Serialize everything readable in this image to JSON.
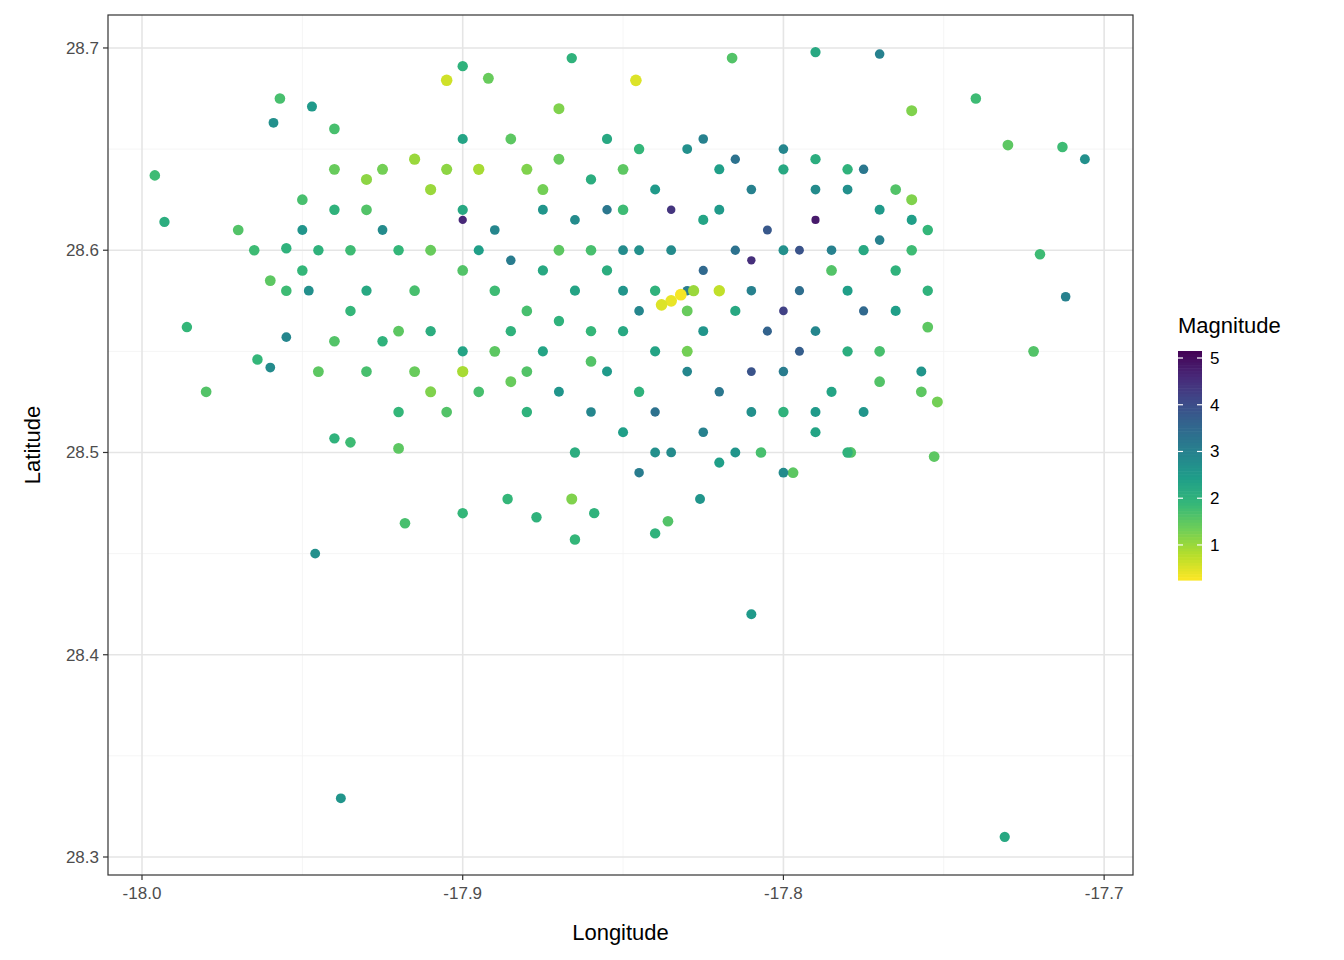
{
  "chart_data": {
    "type": "scatter",
    "x_label": "Longitude",
    "y_label": "Latitude",
    "xlim": [
      -18.0106,
      -17.691
    ],
    "ylim": [
      28.2911,
      28.7163
    ],
    "xticks": [
      {
        "value": -18,
        "label": "-18.0"
      },
      -17.9,
      -17.8,
      -17.7
    ],
    "yticks": [
      28.3,
      28.4,
      28.5,
      28.6,
      28.7
    ],
    "grid": true,
    "colorbar": {
      "title": "Magnitude",
      "range": [
        0.25,
        5.15
      ],
      "ticks": [
        1,
        2,
        3,
        4,
        5
      ]
    },
    "x": [
      -17.946,
      -17.938,
      -17.81,
      -17.731,
      -17.996,
      -17.993,
      -17.986,
      -17.706,
      -17.712,
      -17.713,
      -17.722,
      -17.72,
      -17.77,
      -17.79,
      -17.816,
      -17.846,
      -17.892,
      -17.905,
      -17.9,
      -17.866,
      -17.76,
      -17.74,
      -17.73,
      -17.753,
      -17.752,
      -17.757,
      -17.757,
      -17.755,
      -17.779,
      -17.78,
      -17.797,
      -17.807,
      -17.826,
      -17.84,
      -17.836,
      -17.865,
      -17.866,
      -17.859,
      -17.877,
      -17.918,
      -17.9,
      -17.886,
      -17.92,
      -17.935,
      -17.94,
      -17.98,
      -17.964,
      -17.96,
      -17.955,
      -17.955,
      -17.965,
      -17.97,
      -17.957,
      -17.959,
      -17.947,
      -17.94,
      -17.948,
      -17.945,
      -17.93,
      -17.92,
      -17.915,
      -17.91,
      -17.905,
      -17.9,
      -17.895,
      -17.89,
      -17.885,
      -17.88,
      -17.875,
      -17.87,
      -17.865,
      -17.86,
      -17.855,
      -17.85,
      -17.845,
      -17.84,
      -17.925,
      -17.91,
      -17.895,
      -17.88,
      -17.87,
      -17.935,
      -17.94,
      -17.93,
      -17.92,
      -17.915,
      -17.9,
      -17.895,
      -17.88,
      -17.87,
      -17.86,
      -17.85,
      -17.905,
      -17.91,
      -17.92,
      -17.93,
      -17.94,
      -17.945,
      -17.95,
      -17.955,
      -17.96,
      -17.925,
      -17.9,
      -17.89,
      -17.885,
      -17.875,
      -17.865,
      -17.86,
      -17.855,
      -17.88,
      -17.87,
      -17.89,
      -17.875,
      -17.86,
      -17.85,
      -17.845,
      -17.84,
      -17.91,
      -17.9,
      -17.93,
      -17.915,
      -17.9,
      -17.885,
      -17.875,
      -17.86,
      -17.85,
      -17.845,
      -17.87,
      -17.855,
      -17.94,
      -17.95,
      -17.95,
      -17.935,
      -17.925,
      -17.9,
      -17.885,
      -17.865,
      -17.835,
      -17.83,
      -17.825,
      -17.82,
      -17.815,
      -17.81,
      -17.805,
      -17.8,
      -17.795,
      -17.79,
      -17.785,
      -17.78,
      -17.775,
      -17.77,
      -17.765,
      -17.76,
      -17.83,
      -17.82,
      -17.81,
      -17.8,
      -17.79,
      -17.84,
      -17.835,
      -17.825,
      -17.815,
      -17.82,
      -17.81,
      -17.8,
      -17.79,
      -17.78,
      -17.775,
      -17.83,
      -17.84,
      -17.835,
      -17.8,
      -17.79,
      -17.805,
      -17.825,
      -17.815,
      -17.795,
      -17.78,
      -17.785,
      -17.77,
      -17.765,
      -17.775,
      -17.785,
      -17.8,
      -17.81,
      -17.83,
      -17.845,
      -17.85,
      -17.835,
      -17.832,
      -17.838,
      -17.828,
      -17.82,
      -17.83,
      -17.8,
      -17.82,
      -17.845,
      -17.84,
      -17.825,
      -17.815,
      -17.8,
      -17.79,
      -17.78,
      -17.76,
      -17.755,
      -17.76,
      -17.765,
      -17.77,
      -17.755,
      -17.77,
      -17.775,
      -17.79,
      -17.795,
      -17.81,
      -17.825,
      -17.855,
      -17.85
    ],
    "values": [
      28.45,
      28.329,
      28.42,
      28.31,
      28.637,
      28.614,
      28.562,
      28.645,
      28.577,
      28.651,
      28.55,
      28.598,
      28.697,
      28.698,
      28.695,
      28.684,
      28.685,
      28.684,
      28.691,
      28.695,
      28.669,
      28.675,
      28.652,
      28.498,
      28.525,
      28.54,
      28.53,
      28.562,
      28.5,
      28.5,
      28.49,
      28.5,
      28.477,
      28.46,
      28.466,
      28.457,
      28.477,
      28.47,
      28.468,
      28.465,
      28.47,
      28.477,
      28.502,
      28.505,
      28.507,
      28.53,
      28.546,
      28.542,
      28.557,
      28.601,
      28.6,
      28.61,
      28.675,
      28.663,
      28.671,
      28.66,
      28.58,
      28.6,
      28.62,
      28.6,
      28.58,
      28.56,
      28.64,
      28.62,
      28.6,
      28.58,
      28.56,
      28.54,
      28.62,
      28.6,
      28.58,
      28.56,
      28.54,
      28.62,
      28.6,
      28.58,
      28.64,
      28.63,
      28.64,
      28.64,
      28.645,
      28.6,
      28.62,
      28.58,
      28.56,
      28.54,
      28.55,
      28.53,
      28.52,
      28.53,
      28.52,
      28.51,
      28.52,
      28.53,
      28.52,
      28.54,
      28.555,
      28.54,
      28.59,
      28.58,
      28.585,
      28.61,
      28.615,
      28.61,
      28.595,
      28.59,
      28.615,
      28.6,
      28.59,
      28.57,
      28.565,
      28.55,
      28.55,
      28.545,
      28.56,
      28.53,
      28.55,
      28.6,
      28.59,
      28.635,
      28.645,
      28.655,
      28.655,
      28.63,
      28.635,
      28.64,
      28.65,
      28.67,
      28.655,
      28.64,
      28.625,
      28.61,
      28.57,
      28.555,
      28.54,
      28.535,
      28.5,
      28.6,
      28.58,
      28.56,
      28.62,
      28.6,
      28.58,
      28.56,
      28.6,
      28.58,
      28.56,
      28.6,
      28.58,
      28.6,
      28.62,
      28.59,
      28.6,
      28.54,
      28.53,
      28.52,
      28.54,
      28.52,
      28.52,
      28.5,
      28.51,
      28.5,
      28.64,
      28.63,
      28.64,
      28.63,
      28.64,
      28.64,
      28.65,
      28.63,
      28.62,
      28.57,
      28.615,
      28.61,
      28.59,
      28.57,
      28.55,
      28.55,
      28.53,
      28.55,
      28.57,
      28.57,
      28.59,
      28.52,
      28.54,
      28.57,
      28.57,
      28.58,
      28.575,
      28.578,
      28.573,
      28.58,
      28.58,
      28.55,
      28.49,
      28.495,
      28.49,
      28.5,
      28.655,
      28.645,
      28.65,
      28.645,
      28.63,
      28.615,
      28.61,
      28.625,
      28.63,
      28.605,
      28.58,
      28.535,
      28.52,
      28.51,
      28.6,
      28.595,
      28.615,
      28.62,
      28.6
    ],
    "magnitude": [
      2.7,
      2.6,
      2.5,
      2.2,
      1.8,
      2.1,
      1.9,
      2.7,
      3.0,
      1.8,
      1.6,
      1.8,
      3.0,
      2.2,
      1.6,
      0.5,
      1.4,
      0.6,
      2.0,
      2.0,
      1.2,
      1.8,
      1.5,
      1.5,
      1.3,
      2.6,
      1.5,
      1.5,
      1.6,
      2.0,
      1.5,
      1.7,
      2.6,
      2.0,
      1.6,
      1.9,
      1.2,
      2.0,
      2.0,
      1.7,
      1.9,
      1.9,
      1.5,
      1.8,
      2.0,
      1.6,
      1.9,
      2.8,
      2.9,
      2.0,
      1.8,
      1.6,
      1.7,
      2.7,
      2.5,
      1.7,
      2.7,
      2.0,
      1.6,
      1.9,
      1.7,
      2.1,
      1.1,
      2.2,
      2.4,
      1.8,
      2.0,
      1.6,
      2.6,
      1.5,
      2.3,
      1.9,
      2.5,
      1.8,
      2.7,
      2.0,
      1.3,
      1.0,
      0.9,
      1.2,
      1.4,
      1.8,
      2.0,
      2.2,
      1.5,
      1.4,
      2.3,
      1.7,
      2.0,
      2.6,
      2.9,
      2.4,
      1.6,
      1.2,
      1.9,
      1.7,
      1.6,
      1.5,
      1.9,
      1.8,
      1.5,
      2.8,
      4.6,
      2.9,
      3.1,
      2.2,
      2.8,
      1.7,
      2.1,
      1.7,
      2.0,
      1.5,
      2.3,
      1.6,
      2.2,
      2.0,
      2.3,
      1.4,
      1.6,
      1.1,
      1.0,
      2.3,
      1.5,
      1.3,
      2.1,
      1.5,
      1.9,
      1.2,
      2.2,
      1.4,
      1.7,
      2.6,
      1.9,
      2.0,
      0.9,
      1.4,
      2.1,
      2.8,
      3.1,
      2.6,
      2.5,
      3.3,
      3.0,
      3.6,
      2.7,
      3.4,
      2.9,
      3.0,
      2.4,
      2.2,
      2.5,
      2.0,
      1.8,
      2.9,
      3.2,
      2.7,
      3.1,
      2.5,
      3.3,
      2.8,
      3.0,
      2.6,
      2.4,
      3.0,
      2.2,
      2.8,
      2.0,
      3.2,
      2.7,
      2.5,
      4.4,
      4.2,
      4.8,
      3.8,
      3.5,
      2.2,
      3.7,
      2.1,
      2.3,
      1.7,
      2.4,
      3.5,
      1.6,
      2.0,
      3.9,
      1.4,
      2.9,
      2.6,
      0.4,
      0.3,
      0.5,
      1.0,
      0.7,
      1.3,
      2.8,
      2.4,
      3.1,
      2.7,
      3.0,
      3.3,
      2.9,
      2.1,
      2.7,
      2.4,
      1.9,
      1.2,
      1.6,
      3.0,
      2.0,
      1.6,
      2.6,
      2.3,
      3.9,
      4.5,
      2.3,
      3.2,
      2.8
    ]
  }
}
